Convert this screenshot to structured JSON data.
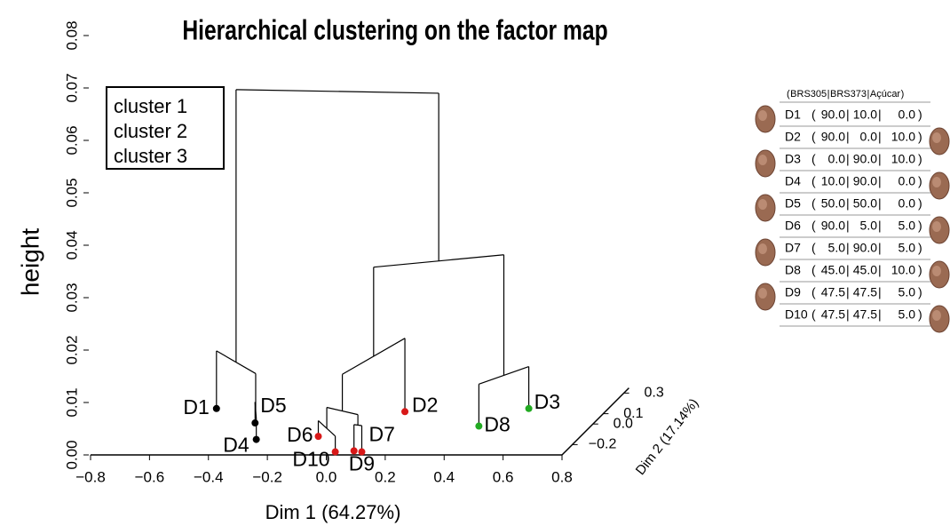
{
  "chart_data": {
    "type": "dendrogram3d",
    "title": "Hierarchical clustering on the factor map",
    "xlabel": "Dim 1 (64.27%)",
    "ylabel": "height",
    "zlabel": "Dim 2 (17.14%)",
    "xlim": [
      -0.8,
      0.8
    ],
    "ylim": [
      0,
      0.08
    ],
    "zlim": [
      -0.3,
      0.35
    ],
    "xticks": [
      {
        "value": -0.8,
        "label": "−0.8"
      },
      {
        "value": -0.6,
        "label": "−0.6"
      },
      {
        "value": -0.4,
        "label": "−0.4"
      },
      {
        "value": -0.2,
        "label": "−0.2"
      },
      {
        "value": 0,
        "label": "0.0"
      },
      0.2,
      0.4,
      0.6,
      0.8
    ],
    "yticks": [
      {
        "value": 0,
        "label": "0.00"
      },
      0.01,
      0.02,
      0.03,
      0.04,
      0.05,
      0.06,
      0.07,
      0.08
    ],
    "zticks": [
      {
        "value": -0.2,
        "label": "−0.2"
      },
      {
        "value": 0,
        "label": "0.0"
      },
      0.1,
      0.3
    ],
    "legend": {
      "position": "upper left"
    },
    "clusters": [
      {
        "name": "cluster 1",
        "color": "#000000"
      },
      {
        "name": "cluster 2",
        "color": "#d81818"
      },
      {
        "name": "cluster 3",
        "color": "#22aa22"
      }
    ],
    "points": [
      {
        "label": "D1",
        "dim1": -0.53,
        "dim2": 0.15,
        "height": 0,
        "cluster": 0
      },
      {
        "label": "D2",
        "dim1": 0.12,
        "dim2": 0.12,
        "height": 0,
        "cluster": 1
      },
      {
        "label": "D3",
        "dim1": 0.53,
        "dim2": 0.15,
        "height": 0,
        "cluster": 2
      },
      {
        "label": "D4",
        "dim1": -0.29,
        "dim2": -0.15,
        "height": 0,
        "cluster": 0
      },
      {
        "label": "D5",
        "dim1": -0.35,
        "dim2": 0.01,
        "height": 0,
        "cluster": 0
      },
      {
        "label": "D6",
        "dim1": -0.09,
        "dim2": -0.12,
        "height": 0,
        "cluster": 1
      },
      {
        "label": "D7",
        "dim1": 0.11,
        "dim2": -0.27,
        "height": 0,
        "cluster": 1
      },
      {
        "label": "D8",
        "dim1": 0.42,
        "dim2": -0.02,
        "height": 0,
        "cluster": 2
      },
      {
        "label": "D9",
        "dim1": 0.08,
        "dim2": -0.26,
        "height": 0,
        "cluster": 1
      },
      {
        "label": "D10",
        "dim1": 0.02,
        "dim2": -0.27,
        "height": 0,
        "cluster": 1
      }
    ],
    "merges": [
      {
        "left": 3,
        "right": 4,
        "height": 0.004
      },
      {
        "left": 5,
        "right": 9,
        "height": 0.003
      },
      {
        "left": 8,
        "right": 6,
        "height": 0.005
      },
      {
        "left": 11,
        "right": 12,
        "height": 0.007
      },
      {
        "left": 7,
        "right": 2,
        "height": 0.008
      },
      {
        "left": 0,
        "right": 10,
        "height": 0.011
      },
      {
        "left": 13,
        "right": 1,
        "height": 0.014
      },
      {
        "left": 16,
        "right": 14,
        "height": 0.031
      },
      {
        "left": 15,
        "right": 17,
        "height": 0.063
      }
    ]
  },
  "table": {
    "separators": [
      "(",
      "|",
      "|",
      ")"
    ],
    "columns": [
      "BRS305",
      "BRS373",
      "Açúcar"
    ],
    "rows": [
      {
        "label": "D1",
        "values": [
          "90.0",
          "10.0",
          "0.0"
        ]
      },
      {
        "label": "D2",
        "values": [
          "90.0",
          "0.0",
          "10.0"
        ]
      },
      {
        "label": "D3",
        "values": [
          "0.0",
          "90.0",
          "10.0"
        ]
      },
      {
        "label": "D4",
        "values": [
          "10.0",
          "90.0",
          "0.0"
        ]
      },
      {
        "label": "D5",
        "values": [
          "50.0",
          "50.0",
          "0.0"
        ]
      },
      {
        "label": "D6",
        "values": [
          "90.0",
          "5.0",
          "5.0"
        ]
      },
      {
        "label": "D7",
        "values": [
          "5.0",
          "90.0",
          "5.0"
        ]
      },
      {
        "label": "D8",
        "values": [
          "45.0",
          "45.0",
          "10.0"
        ]
      },
      {
        "label": "D9",
        "values": [
          "47.5",
          "47.5",
          "5.0"
        ]
      },
      {
        "label": "D10",
        "values": [
          "47.5",
          "47.5",
          "5.0"
        ]
      }
    ]
  }
}
